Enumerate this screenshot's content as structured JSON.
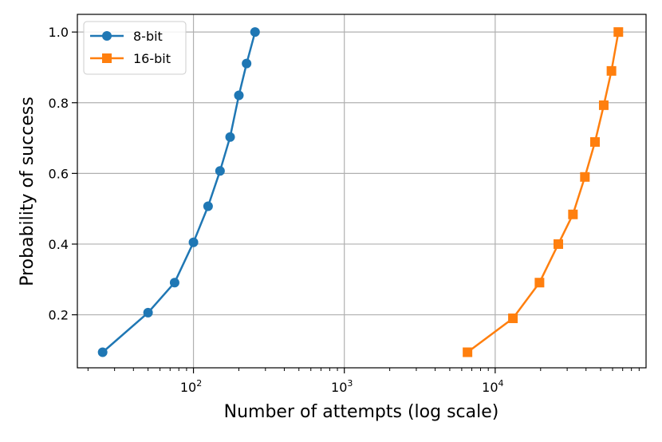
{
  "chart_data": {
    "type": "line",
    "xlabel": "Number of attempts (log scale)",
    "ylabel": "Probability of success",
    "xscale": "log",
    "xlim": [
      17,
      100000
    ],
    "ylim": [
      0.05,
      1.05
    ],
    "grid": true,
    "legend_position": "top-left",
    "x_tick_labels": [
      {
        "value": 100,
        "base": "10",
        "exp": "2"
      },
      {
        "value": 1000,
        "base": "10",
        "exp": "3"
      },
      {
        "value": 10000,
        "base": "10",
        "exp": "4"
      }
    ],
    "y_ticks": [
      0.2,
      0.4,
      0.6,
      0.8,
      1.0
    ],
    "y_tick_labels": [
      "0.2",
      "0.4",
      "0.6",
      "0.8",
      "1.0"
    ],
    "series": [
      {
        "name": "8-bit",
        "color": "#1f77b4",
        "marker": "circle",
        "x": [
          25,
          50,
          75,
          100,
          125,
          150,
          175,
          200,
          225,
          256
        ],
        "y": [
          0.094,
          0.206,
          0.291,
          0.405,
          0.507,
          0.607,
          0.703,
          0.821,
          0.911,
          1.0
        ]
      },
      {
        "name": "16-bit",
        "color": "#ff7f0e",
        "marker": "square",
        "x": [
          6554,
          13107,
          19661,
          26214,
          32768,
          39322,
          45875,
          52429,
          58982,
          65536
        ],
        "y": [
          0.094,
          0.19,
          0.291,
          0.4,
          0.484,
          0.59,
          0.689,
          0.793,
          0.89,
          1.0
        ]
      }
    ]
  }
}
